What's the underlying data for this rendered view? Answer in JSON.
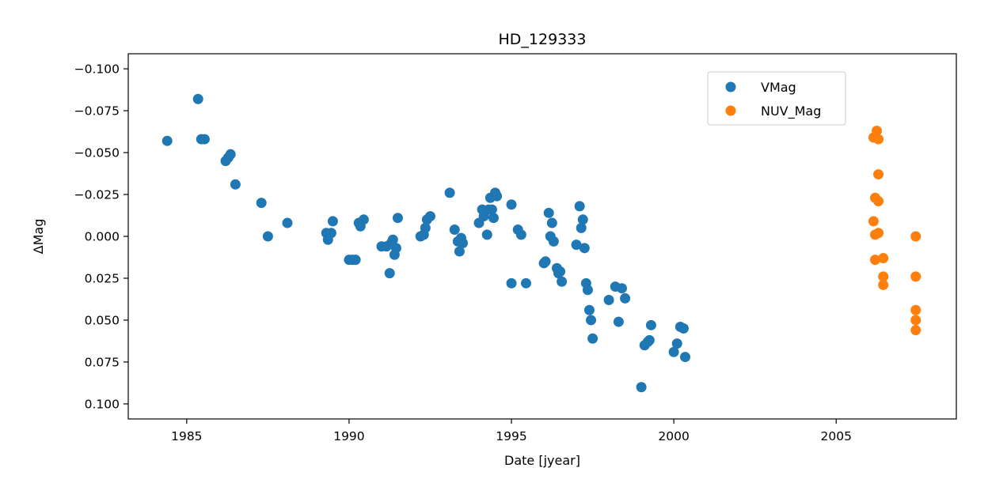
{
  "chart_data": {
    "type": "scatter",
    "title": "HD_129333",
    "xlabel": "Date [jyear]",
    "ylabel": "ΔMag",
    "xlim": [
      1983.2,
      2008.7
    ],
    "ylim": [
      0.109,
      -0.109
    ],
    "y_inverted": true,
    "grid": false,
    "legend_position": "top-right",
    "x_ticks": [
      1985,
      1990,
      1995,
      2000,
      2005
    ],
    "y_ticks": [
      -0.1,
      -0.075,
      -0.05,
      -0.025,
      0.0,
      0.025,
      0.05,
      0.075,
      0.1
    ],
    "x_tick_labels": [
      "1985",
      "1990",
      "1995",
      "2000",
      "2005"
    ],
    "y_tick_labels": [
      "−0.100",
      "−0.075",
      "−0.050",
      "−0.025",
      "0.000",
      "0.025",
      "0.050",
      "0.075",
      "0.100"
    ],
    "series": [
      {
        "name": "VMag",
        "color": "#1f77b4",
        "points": [
          [
            1984.4,
            -0.057
          ],
          [
            1985.35,
            -0.082
          ],
          [
            1985.45,
            -0.058
          ],
          [
            1985.55,
            -0.058
          ],
          [
            1986.2,
            -0.045
          ],
          [
            1986.28,
            -0.047
          ],
          [
            1986.35,
            -0.049
          ],
          [
            1986.5,
            -0.031
          ],
          [
            1987.3,
            -0.02
          ],
          [
            1987.5,
            0.0
          ],
          [
            1988.1,
            -0.008
          ],
          [
            1989.3,
            -0.002
          ],
          [
            1989.35,
            0.002
          ],
          [
            1989.45,
            -0.002
          ],
          [
            1989.5,
            -0.009
          ],
          [
            1990.0,
            0.014
          ],
          [
            1990.1,
            0.014
          ],
          [
            1990.2,
            0.014
          ],
          [
            1990.3,
            -0.008
          ],
          [
            1990.35,
            -0.006
          ],
          [
            1990.45,
            -0.01
          ],
          [
            1991.0,
            0.006
          ],
          [
            1991.15,
            0.006
          ],
          [
            1991.25,
            0.022
          ],
          [
            1991.3,
            0.004
          ],
          [
            1991.35,
            0.002
          ],
          [
            1991.4,
            0.011
          ],
          [
            1991.45,
            0.007
          ],
          [
            1991.5,
            -0.011
          ],
          [
            1992.2,
            0.0
          ],
          [
            1992.3,
            -0.001
          ],
          [
            1992.35,
            -0.005
          ],
          [
            1992.4,
            -0.01
          ],
          [
            1992.5,
            -0.012
          ],
          [
            1993.1,
            -0.026
          ],
          [
            1993.25,
            -0.004
          ],
          [
            1993.35,
            0.003
          ],
          [
            1993.4,
            0.009
          ],
          [
            1993.45,
            0.001
          ],
          [
            1993.5,
            0.004
          ],
          [
            1994.0,
            -0.008
          ],
          [
            1994.1,
            -0.016
          ],
          [
            1994.15,
            -0.012
          ],
          [
            1994.25,
            -0.001
          ],
          [
            1994.3,
            -0.016
          ],
          [
            1994.35,
            -0.023
          ],
          [
            1994.4,
            -0.016
          ],
          [
            1994.45,
            -0.011
          ],
          [
            1994.5,
            -0.026
          ],
          [
            1994.55,
            -0.024
          ],
          [
            1995.0,
            -0.019
          ],
          [
            1995.0,
            0.028
          ],
          [
            1995.2,
            -0.004
          ],
          [
            1995.3,
            -0.001
          ],
          [
            1995.45,
            0.028
          ],
          [
            1996.0,
            0.016
          ],
          [
            1996.05,
            0.015
          ],
          [
            1996.15,
            -0.014
          ],
          [
            1996.2,
            0.0
          ],
          [
            1996.25,
            -0.008
          ],
          [
            1996.3,
            0.003
          ],
          [
            1996.4,
            0.019
          ],
          [
            1996.45,
            0.022
          ],
          [
            1996.5,
            0.021
          ],
          [
            1996.55,
            0.027
          ],
          [
            1997.0,
            0.005
          ],
          [
            1997.1,
            -0.018
          ],
          [
            1997.15,
            -0.005
          ],
          [
            1997.2,
            -0.01
          ],
          [
            1997.25,
            0.007
          ],
          [
            1997.3,
            0.028
          ],
          [
            1997.35,
            0.032
          ],
          [
            1997.4,
            0.044
          ],
          [
            1997.45,
            0.05
          ],
          [
            1997.5,
            0.061
          ],
          [
            1998.0,
            0.038
          ],
          [
            1998.2,
            0.03
          ],
          [
            1998.3,
            0.051
          ],
          [
            1998.4,
            0.031
          ],
          [
            1998.5,
            0.037
          ],
          [
            1999.0,
            0.09
          ],
          [
            1999.1,
            0.065
          ],
          [
            1999.2,
            0.063
          ],
          [
            1999.25,
            0.062
          ],
          [
            1999.3,
            0.053
          ],
          [
            2000.0,
            0.069
          ],
          [
            2000.1,
            0.064
          ],
          [
            2000.2,
            0.054
          ],
          [
            2000.3,
            0.055
          ],
          [
            2000.35,
            0.072
          ]
        ]
      },
      {
        "name": "NUV_Mag",
        "color": "#ff7f0e",
        "points": [
          [
            2006.15,
            -0.059
          ],
          [
            2006.25,
            -0.063
          ],
          [
            2006.3,
            -0.058
          ],
          [
            2006.3,
            -0.037
          ],
          [
            2006.2,
            -0.023
          ],
          [
            2006.3,
            -0.021
          ],
          [
            2006.15,
            -0.009
          ],
          [
            2006.2,
            -0.001
          ],
          [
            2006.3,
            -0.002
          ],
          [
            2006.2,
            0.014
          ],
          [
            2006.45,
            0.013
          ],
          [
            2006.45,
            0.024
          ],
          [
            2006.45,
            0.029
          ],
          [
            2007.45,
            0.0
          ],
          [
            2007.45,
            0.024
          ],
          [
            2007.45,
            0.044
          ],
          [
            2007.45,
            0.05
          ],
          [
            2007.45,
            0.056
          ]
        ]
      }
    ]
  }
}
